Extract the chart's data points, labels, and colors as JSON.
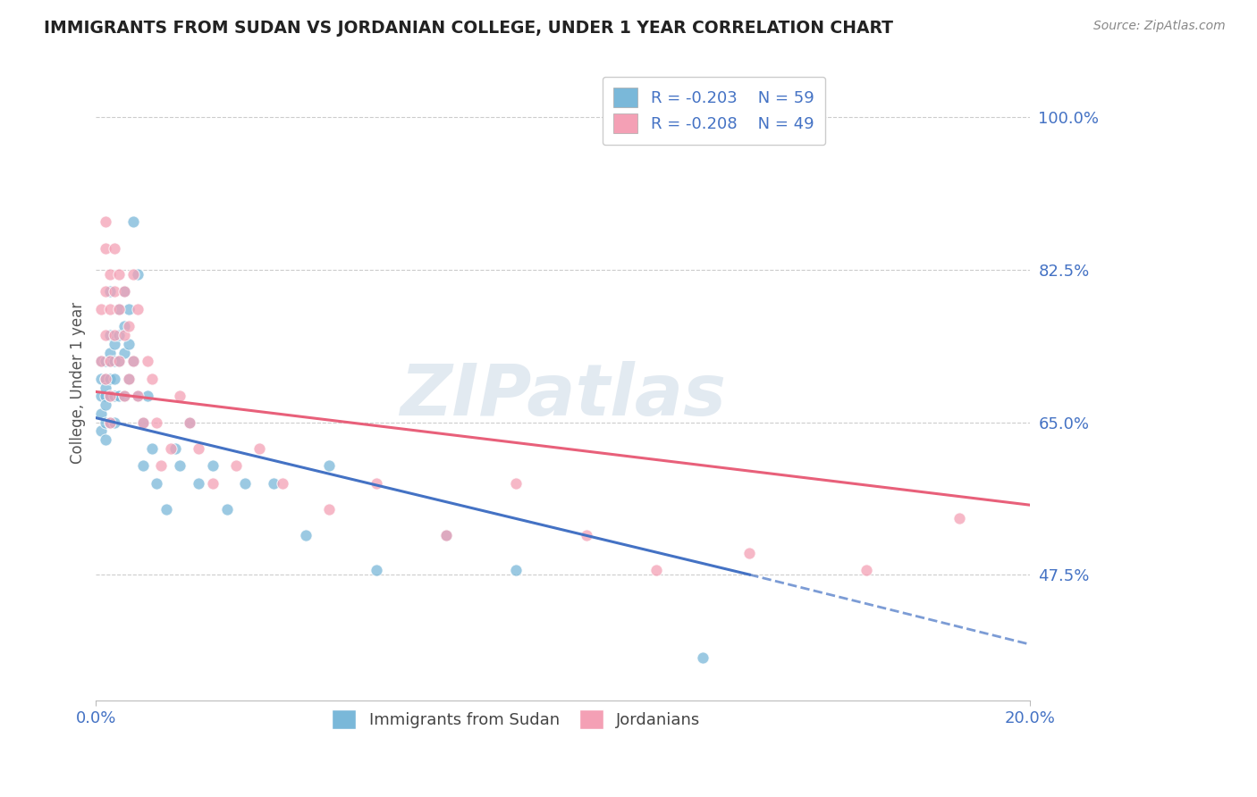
{
  "title": "IMMIGRANTS FROM SUDAN VS JORDANIAN COLLEGE, UNDER 1 YEAR CORRELATION CHART",
  "source": "Source: ZipAtlas.com",
  "ylabel": "College, Under 1 year",
  "xlim": [
    0.0,
    0.2
  ],
  "ylim": [
    0.33,
    1.06
  ],
  "xticks": [
    0.0,
    0.2
  ],
  "xticklabels": [
    "0.0%",
    "20.0%"
  ],
  "ytick_positions": [
    0.475,
    0.65,
    0.825,
    1.0
  ],
  "yticklabels": [
    "47.5%",
    "65.0%",
    "82.5%",
    "100.0%"
  ],
  "legend_r1": "R = -0.203",
  "legend_n1": "N = 59",
  "legend_r2": "R = -0.208",
  "legend_n2": "N = 49",
  "color_blue": "#7ab8d9",
  "color_pink": "#f4a0b5",
  "color_blue_line": "#4472c4",
  "color_pink_line": "#e8607a",
  "color_title": "#222222",
  "color_axis_label": "#555555",
  "color_tick_label": "#4472c4",
  "color_grid": "#cccccc",
  "color_source": "#888888",
  "watermark": "ZIPatlas",
  "legend_label1": "Immigrants from Sudan",
  "legend_label2": "Jordanians",
  "blue_line_x0": 0.0,
  "blue_line_y0": 0.655,
  "blue_line_x1": 0.14,
  "blue_line_y1": 0.475,
  "blue_line_dash_x0": 0.14,
  "blue_line_dash_y0": 0.475,
  "blue_line_dash_x1": 0.2,
  "blue_line_dash_y1": 0.395,
  "pink_line_x0": 0.0,
  "pink_line_y0": 0.685,
  "pink_line_x1": 0.2,
  "pink_line_y1": 0.555,
  "blue_scatter_x": [
    0.001,
    0.001,
    0.001,
    0.001,
    0.001,
    0.002,
    0.002,
    0.002,
    0.002,
    0.002,
    0.002,
    0.002,
    0.003,
    0.003,
    0.003,
    0.003,
    0.003,
    0.003,
    0.003,
    0.004,
    0.004,
    0.004,
    0.004,
    0.004,
    0.005,
    0.005,
    0.005,
    0.005,
    0.006,
    0.006,
    0.006,
    0.006,
    0.007,
    0.007,
    0.007,
    0.008,
    0.008,
    0.009,
    0.009,
    0.01,
    0.01,
    0.011,
    0.012,
    0.013,
    0.015,
    0.017,
    0.018,
    0.02,
    0.022,
    0.025,
    0.028,
    0.032,
    0.038,
    0.045,
    0.05,
    0.06,
    0.075,
    0.09,
    0.13
  ],
  "blue_scatter_y": [
    0.66,
    0.68,
    0.7,
    0.72,
    0.64,
    0.68,
    0.7,
    0.72,
    0.65,
    0.67,
    0.63,
    0.69,
    0.7,
    0.72,
    0.68,
    0.65,
    0.75,
    0.8,
    0.73,
    0.68,
    0.72,
    0.74,
    0.7,
    0.65,
    0.75,
    0.78,
    0.72,
    0.68,
    0.76,
    0.8,
    0.73,
    0.68,
    0.78,
    0.74,
    0.7,
    0.88,
    0.72,
    0.68,
    0.82,
    0.65,
    0.6,
    0.68,
    0.62,
    0.58,
    0.55,
    0.62,
    0.6,
    0.65,
    0.58,
    0.6,
    0.55,
    0.58,
    0.58,
    0.52,
    0.6,
    0.48,
    0.52,
    0.48,
    0.38
  ],
  "pink_scatter_x": [
    0.001,
    0.001,
    0.002,
    0.002,
    0.002,
    0.002,
    0.002,
    0.003,
    0.003,
    0.003,
    0.003,
    0.003,
    0.004,
    0.004,
    0.004,
    0.005,
    0.005,
    0.005,
    0.006,
    0.006,
    0.006,
    0.007,
    0.007,
    0.008,
    0.008,
    0.009,
    0.009,
    0.01,
    0.011,
    0.012,
    0.013,
    0.014,
    0.016,
    0.018,
    0.02,
    0.022,
    0.025,
    0.03,
    0.035,
    0.04,
    0.05,
    0.06,
    0.075,
    0.09,
    0.105,
    0.12,
    0.14,
    0.165,
    0.185
  ],
  "pink_scatter_y": [
    0.78,
    0.72,
    0.85,
    0.8,
    0.75,
    0.7,
    0.88,
    0.82,
    0.78,
    0.72,
    0.68,
    0.65,
    0.8,
    0.75,
    0.85,
    0.82,
    0.78,
    0.72,
    0.8,
    0.75,
    0.68,
    0.76,
    0.7,
    0.82,
    0.72,
    0.78,
    0.68,
    0.65,
    0.72,
    0.7,
    0.65,
    0.6,
    0.62,
    0.68,
    0.65,
    0.62,
    0.58,
    0.6,
    0.62,
    0.58,
    0.55,
    0.58,
    0.52,
    0.58,
    0.52,
    0.48,
    0.5,
    0.48,
    0.54
  ]
}
